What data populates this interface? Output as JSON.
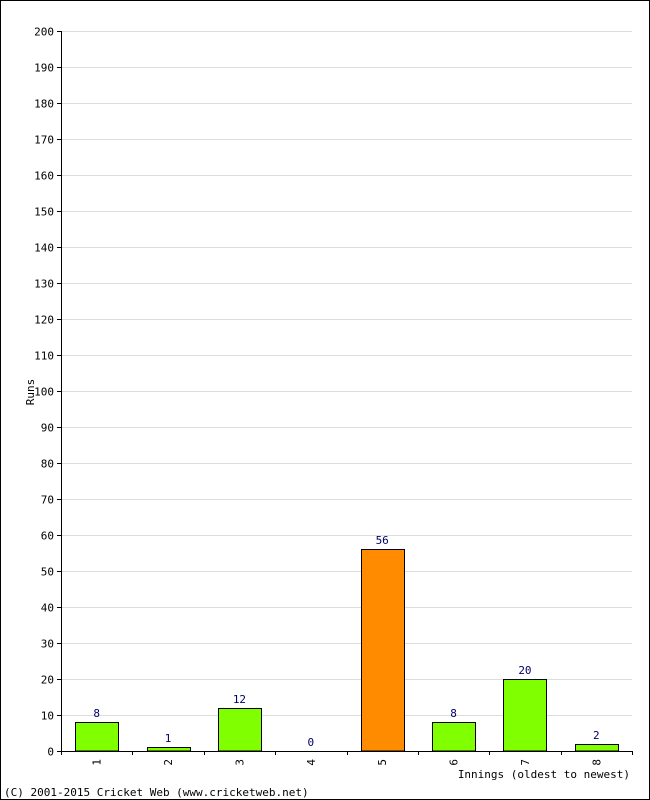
{
  "chart_data": {
    "type": "bar",
    "categories": [
      "1",
      "2",
      "3",
      "4",
      "5",
      "6",
      "7",
      "8"
    ],
    "values": [
      8,
      1,
      12,
      0,
      56,
      8,
      20,
      2
    ],
    "bar_colors": [
      "#7fff00",
      "#7fff00",
      "#7fff00",
      "#7fff00",
      "#ff8c00",
      "#7fff00",
      "#7fff00",
      "#7fff00"
    ],
    "title": "",
    "xlabel": "Innings (oldest to newest)",
    "ylabel": "Runs",
    "ylim": [
      0,
      200
    ],
    "y_ticks": [
      0,
      10,
      20,
      30,
      40,
      50,
      60,
      70,
      80,
      90,
      100,
      110,
      120,
      130,
      140,
      150,
      160,
      170,
      180,
      190,
      200
    ],
    "grid": true,
    "legend": "none"
  },
  "footer": {
    "copyright": "(C) 2001-2015 Cricket Web (www.cricketweb.net)"
  },
  "colors": {
    "grid": "#dddddd",
    "axis": "#000000",
    "bar_outline": "#000000",
    "data_label": "#000066"
  }
}
